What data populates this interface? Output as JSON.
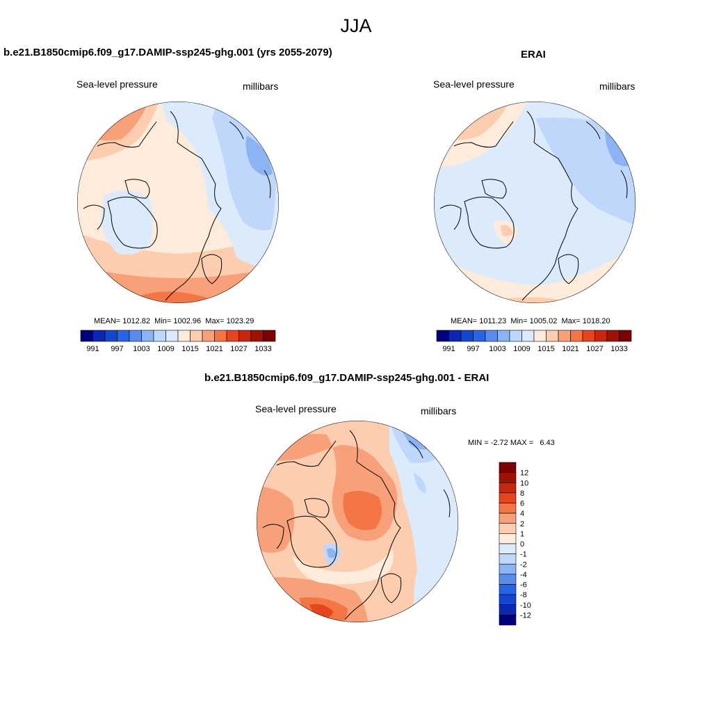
{
  "figure": {
    "title": "JJA"
  },
  "panels": [
    {
      "title": "b.e21.B1850cmip6.f09_g17.DAMIP-ssp245-ghg.001 (yrs 2055-2079)",
      "left_label": "Sea-level pressure",
      "right_label": "millibars",
      "stats": {
        "mean_label": "MEAN=",
        "mean": "1012.82",
        "min_label": "Min=",
        "min": "1002.96",
        "max_label": "Max=",
        "max": "1023.29"
      }
    },
    {
      "title": "ERAI",
      "left_label": "Sea-level pressure",
      "right_label": "millibars",
      "stats": {
        "mean_label": "MEAN=",
        "mean": "1011.23",
        "min_label": "Min=",
        "min": "1005.02",
        "max_label": "Max=",
        "max": "1018.20"
      }
    },
    {
      "title": "b.e21.B1850cmip6.f09_g17.DAMIP-ssp245-ghg.001 - ERAI",
      "left_label": "Sea-level pressure",
      "right_label": "millibars",
      "stats": {
        "min_label": "MIN =",
        "min": "-2.72",
        "max_label": "MAX =",
        "max": "6.43"
      }
    }
  ],
  "colorbar_abs": {
    "colors": [
      "#00007f",
      "#0a28b4",
      "#1446d2",
      "#2864e6",
      "#5a8cf0",
      "#8cb4f5",
      "#bed7fa",
      "#dcebfc",
      "#fdebdc",
      "#fccdaf",
      "#f7a07a",
      "#f47646",
      "#e6461e",
      "#c8280f",
      "#a01205",
      "#7f0000"
    ],
    "ticks": [
      "991",
      "997",
      "1003",
      "1009",
      "1015",
      "1021",
      "1027",
      "1033"
    ]
  },
  "colorbar_diff": {
    "colors": [
      "#00007f",
      "#0a28b4",
      "#1446d2",
      "#2864e6",
      "#5a8cf0",
      "#8cb4f5",
      "#bed7fa",
      "#dcebfc",
      "#fdebdc",
      "#fccdaf",
      "#f7a07a",
      "#f47646",
      "#e6461e",
      "#c8280f",
      "#a01205",
      "#7f0000"
    ],
    "ticks": [
      "-12",
      "-10",
      "-8",
      "-6",
      "-4",
      "-2",
      "-1",
      "0",
      "1",
      "2",
      "4",
      "6",
      "8",
      "10",
      "12"
    ]
  }
}
